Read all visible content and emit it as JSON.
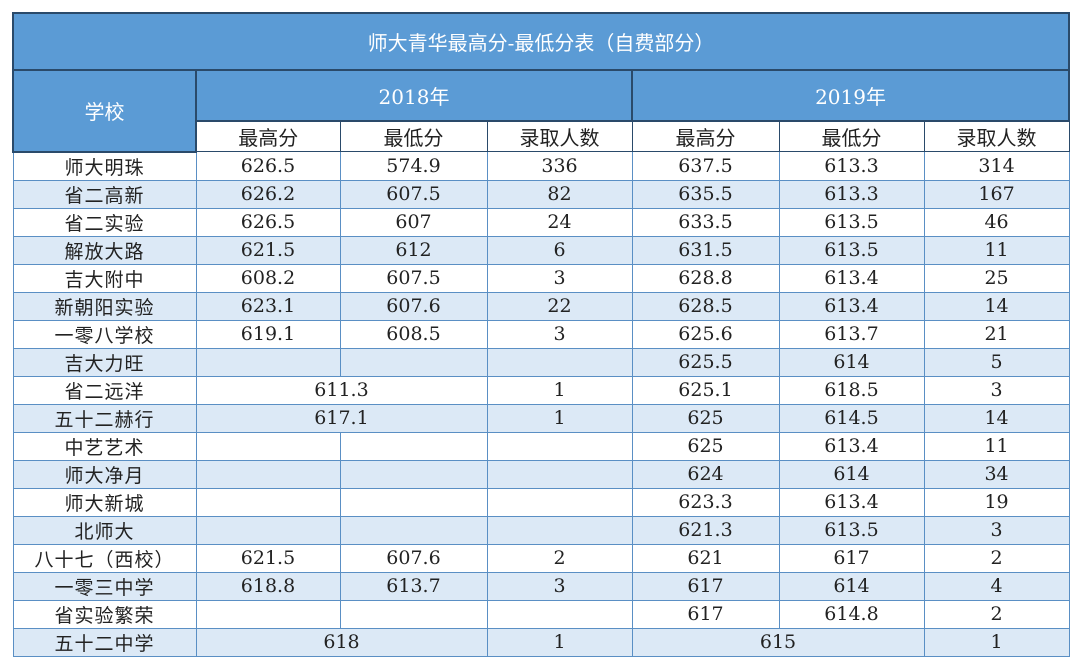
{
  "title": "师大青华最高分-最低分表（自费部分）",
  "header": {
    "school": "学校",
    "years": [
      "2018年",
      "2019年"
    ],
    "columns": [
      "最高分",
      "最低分",
      "录取人数"
    ]
  },
  "colors": {
    "header_bg": "#5b9bd5",
    "stripe": "#dce9f6"
  },
  "rows": [
    {
      "school": "师大明珠",
      "y2018": [
        "626.5",
        "574.9",
        "336"
      ],
      "y2019": [
        "637.5",
        "613.3",
        "314"
      ]
    },
    {
      "school": "省二高新",
      "y2018": [
        "626.2",
        "607.5",
        "82"
      ],
      "y2019": [
        "635.5",
        "613.3",
        "167"
      ]
    },
    {
      "school": "省二实验",
      "y2018": [
        "626.5",
        "607",
        "24"
      ],
      "y2019": [
        "633.5",
        "613.5",
        "46"
      ]
    },
    {
      "school": "解放大路",
      "y2018": [
        "621.5",
        "612",
        "6"
      ],
      "y2019": [
        "631.5",
        "613.5",
        "11"
      ]
    },
    {
      "school": "吉大附中",
      "y2018": [
        "608.2",
        "607.5",
        "3"
      ],
      "y2019": [
        "628.8",
        "613.4",
        "25"
      ]
    },
    {
      "school": "新朝阳实验",
      "y2018": [
        "623.1",
        "607.6",
        "22"
      ],
      "y2019": [
        "628.5",
        "613.4",
        "14"
      ]
    },
    {
      "school": "一零八学校",
      "y2018": [
        "619.1",
        "608.5",
        "3"
      ],
      "y2019": [
        "625.6",
        "613.7",
        "21"
      ]
    },
    {
      "school": "吉大力旺",
      "y2018": [
        "",
        "",
        ""
      ],
      "y2019": [
        "625.5",
        "614",
        "5"
      ]
    },
    {
      "school": "省二远洋",
      "y2018": [
        "611.3",
        "1"
      ],
      "merged2018": true,
      "y2019": [
        "625.1",
        "618.5",
        "3"
      ]
    },
    {
      "school": "五十二赫行",
      "y2018": [
        "617.1",
        "1"
      ],
      "merged2018": true,
      "y2019": [
        "625",
        "614.5",
        "14"
      ]
    },
    {
      "school": "中艺艺术",
      "y2018": [
        "",
        "",
        ""
      ],
      "y2019": [
        "625",
        "613.4",
        "11"
      ]
    },
    {
      "school": "师大净月",
      "y2018": [
        "",
        "",
        ""
      ],
      "y2019": [
        "624",
        "614",
        "34"
      ]
    },
    {
      "school": "师大新城",
      "y2018": [
        "",
        "",
        ""
      ],
      "y2019": [
        "623.3",
        "613.4",
        "19"
      ]
    },
    {
      "school": "北师大",
      "y2018": [
        "",
        "",
        ""
      ],
      "y2019": [
        "621.3",
        "613.5",
        "3"
      ]
    },
    {
      "school": "八十七（西校）",
      "y2018": [
        "621.5",
        "607.6",
        "2"
      ],
      "y2019": [
        "621",
        "617",
        "2"
      ]
    },
    {
      "school": "一零三中学",
      "y2018": [
        "618.8",
        "613.7",
        "3"
      ],
      "y2019": [
        "617",
        "614",
        "4"
      ]
    },
    {
      "school": "省实验繁荣",
      "y2018": [
        "",
        "",
        ""
      ],
      "y2019": [
        "617",
        "614.8",
        "2"
      ]
    },
    {
      "school": "五十二中学",
      "y2018": [
        "618",
        "1"
      ],
      "merged2018": true,
      "y2019": [
        "615",
        "1"
      ],
      "merged2019": true
    }
  ]
}
